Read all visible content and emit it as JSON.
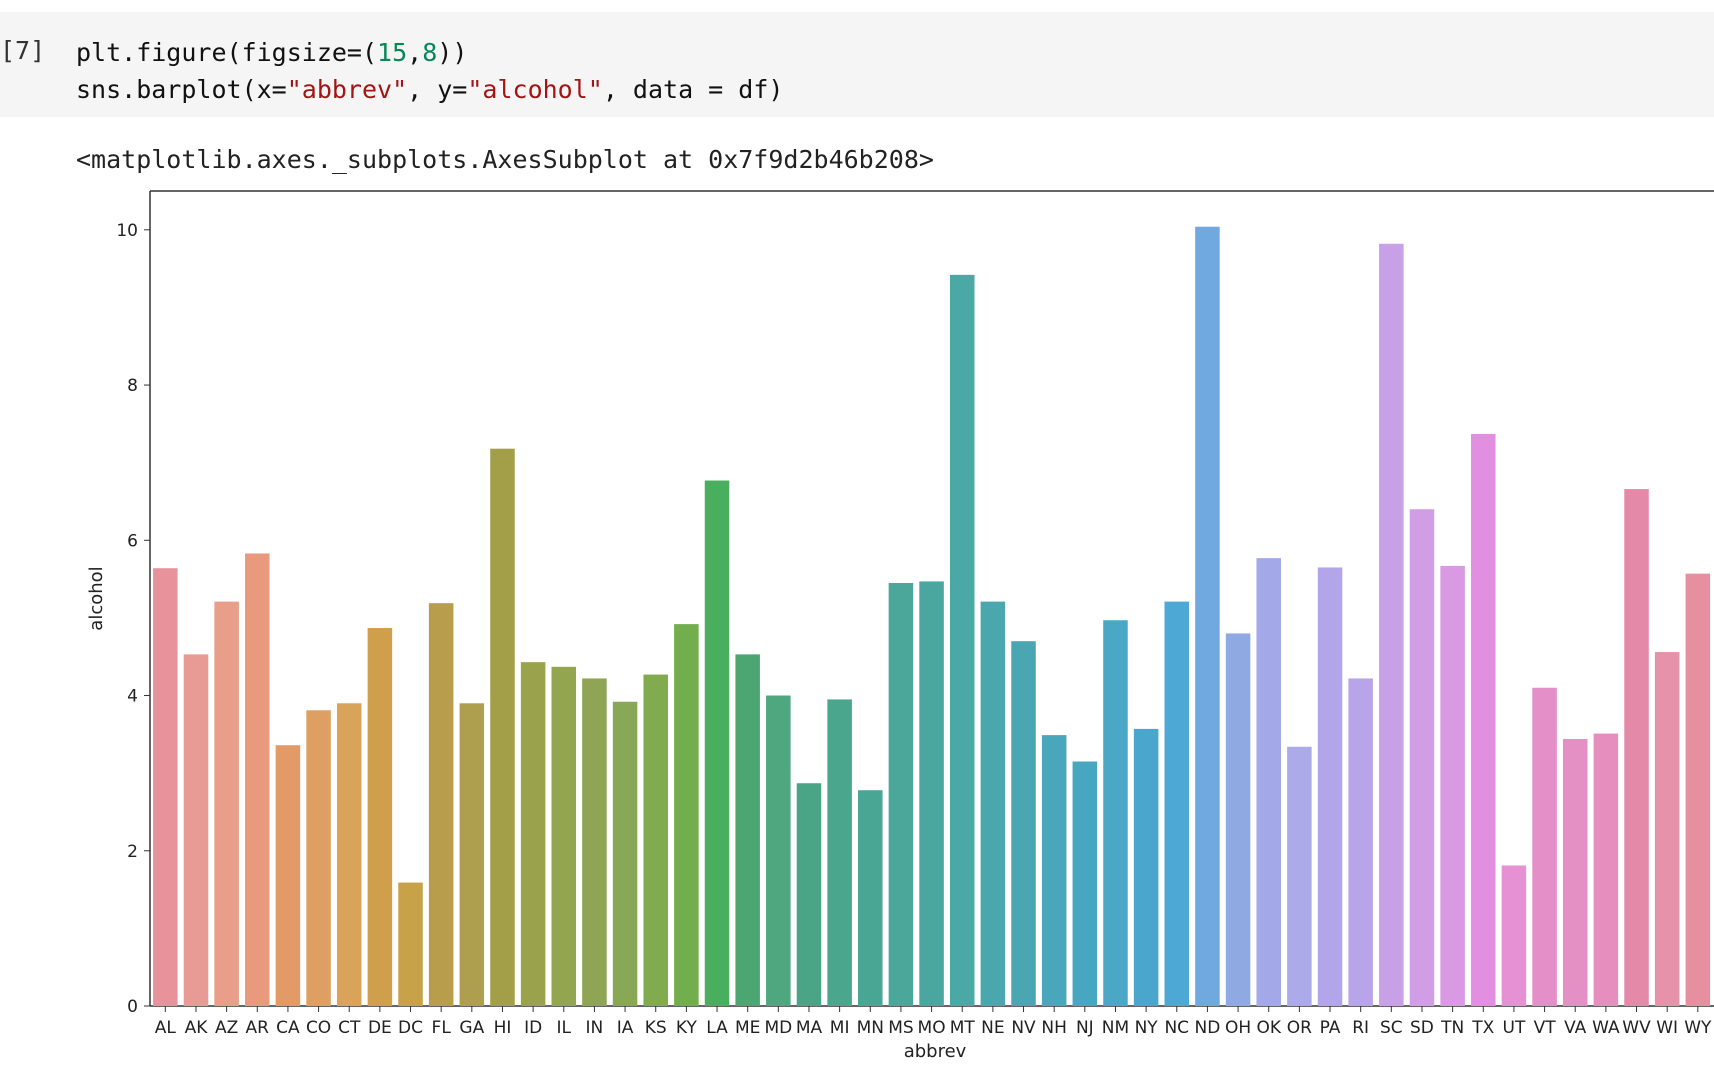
{
  "cell": {
    "prompt": "[7]",
    "line1_code": "plt.figure(figsize=(15,8))",
    "line2_code": "sns.barplot(x=\"abbrev\", y=\"alcohol\", data = df)"
  },
  "output": {
    "repr": "<matplotlib.axes._subplots.AxesSubplot at 0x7f9d2b46b208>"
  },
  "chart_data": {
    "type": "bar",
    "xlabel": "abbrev",
    "ylabel": "alcohol",
    "ylim": [
      0,
      10.5
    ],
    "yticks": [
      0,
      2,
      4,
      6,
      8,
      10
    ],
    "grid": false,
    "categories": [
      "AL",
      "AK",
      "AZ",
      "AR",
      "CA",
      "CO",
      "CT",
      "DE",
      "DC",
      "FL",
      "GA",
      "HI",
      "ID",
      "IL",
      "IN",
      "IA",
      "KS",
      "KY",
      "LA",
      "ME",
      "MD",
      "MA",
      "MI",
      "MN",
      "MS",
      "MO",
      "MT",
      "NE",
      "NV",
      "NH",
      "NJ",
      "NM",
      "NY",
      "NC",
      "ND",
      "OH",
      "OK",
      "OR",
      "PA",
      "RI",
      "SC",
      "SD",
      "TN",
      "TX",
      "UT",
      "VT",
      "VA",
      "WA",
      "WV",
      "WI",
      "WY"
    ],
    "values": [
      5.64,
      4.53,
      5.21,
      5.83,
      3.36,
      3.81,
      3.9,
      4.87,
      1.59,
      5.19,
      3.9,
      7.18,
      4.43,
      4.37,
      4.22,
      3.92,
      4.27,
      4.92,
      6.77,
      4.53,
      4.0,
      2.87,
      3.95,
      2.78,
      5.45,
      5.47,
      9.42,
      5.21,
      4.7,
      3.49,
      3.15,
      4.97,
      3.57,
      5.21,
      10.04,
      4.8,
      5.77,
      3.34,
      5.65,
      4.22,
      9.82,
      6.4,
      5.67,
      7.37,
      1.81,
      4.1,
      3.44,
      3.51,
      6.66,
      4.56,
      5.57
    ],
    "colors": [
      "#e8929b",
      "#e89a95",
      "#e89e88",
      "#e9997e",
      "#e29a66",
      "#dea062",
      "#d9a35a",
      "#cf9f4c",
      "#c7a248",
      "#b89e4c",
      "#ae9f4f",
      "#a39e48",
      "#9aa34b",
      "#94a54f",
      "#8fa554",
      "#89a856",
      "#82aa4f",
      "#72ad4e",
      "#4aae5f",
      "#4ba672",
      "#4ea77f",
      "#4aa586",
      "#4aa68d",
      "#4aa694",
      "#4aa79a",
      "#4aa79f",
      "#4aa8a5",
      "#4aa7ad",
      "#4ba6b3",
      "#4aa6ba",
      "#48a7c0",
      "#4aa8c6",
      "#4aa6cc",
      "#4da8d6",
      "#6fa9df",
      "#8fa9e2",
      "#a2a8e8",
      "#adaae9",
      "#b3a5ea",
      "#b8a4e8",
      "#c7a0e7",
      "#d19de4",
      "#d99ae3",
      "#e28ee1",
      "#e591d4",
      "#e48fc7",
      "#e590c5",
      "#e68fbf",
      "#e48aa8",
      "#e592aa",
      "#e68f9e"
    ]
  }
}
